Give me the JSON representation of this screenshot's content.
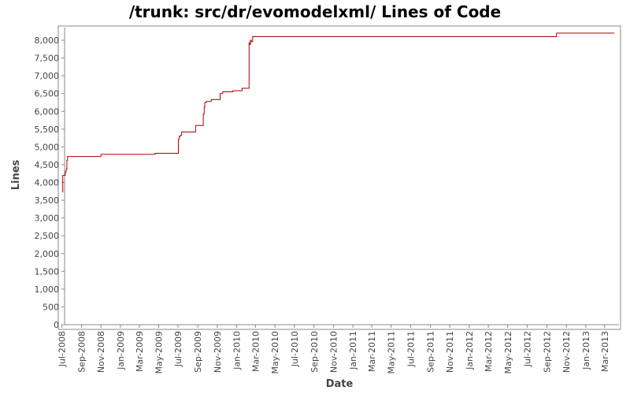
{
  "chart_data": {
    "type": "line",
    "title": "/trunk: src/dr/evomodelxml/ Lines of Code",
    "xlabel": "Date",
    "ylabel": "Lines",
    "ylim": [
      0,
      8400
    ],
    "xlim": [
      "2008-06-20",
      "2013-04-20"
    ],
    "grid": false,
    "legend": "none",
    "line_style": "step",
    "colors": {
      "line": "#b00000",
      "axis": "#888888",
      "plot_border": "#888888",
      "text": "#444444"
    },
    "y_ticks": [
      {
        "value": 0,
        "label": "0"
      },
      {
        "value": 500,
        "label": "500"
      },
      {
        "value": 1000,
        "label": "1,000"
      },
      {
        "value": 1500,
        "label": "1,500"
      },
      {
        "value": 2000,
        "label": "2,000"
      },
      {
        "value": 2500,
        "label": "2,500"
      },
      {
        "value": 3000,
        "label": "3,000"
      },
      {
        "value": 3500,
        "label": "3,500"
      },
      {
        "value": 4000,
        "label": "4,000"
      },
      {
        "value": 4500,
        "label": "4,500"
      },
      {
        "value": 5000,
        "label": "5,000"
      },
      {
        "value": 5500,
        "label": "5,500"
      },
      {
        "value": 6000,
        "label": "6,000"
      },
      {
        "value": 6500,
        "label": "6,500"
      },
      {
        "value": 7000,
        "label": "7,000"
      },
      {
        "value": 7500,
        "label": "7,500"
      },
      {
        "value": 8000,
        "label": "8,000"
      }
    ],
    "x_ticks": [
      {
        "value": "2008-07-01",
        "label": "Jul-2008"
      },
      {
        "value": "2008-09-01",
        "label": "Sep-2008"
      },
      {
        "value": "2008-11-01",
        "label": "Nov-2008"
      },
      {
        "value": "2009-01-01",
        "label": "Jan-2009"
      },
      {
        "value": "2009-03-01",
        "label": "Mar-2009"
      },
      {
        "value": "2009-05-01",
        "label": "May-2009"
      },
      {
        "value": "2009-07-01",
        "label": "Jul-2009"
      },
      {
        "value": "2009-09-01",
        "label": "Sep-2009"
      },
      {
        "value": "2009-11-01",
        "label": "Nov-2009"
      },
      {
        "value": "2010-01-01",
        "label": "Jan-2010"
      },
      {
        "value": "2010-03-01",
        "label": "Mar-2010"
      },
      {
        "value": "2010-05-01",
        "label": "May-2010"
      },
      {
        "value": "2010-07-01",
        "label": "Jul-2010"
      },
      {
        "value": "2010-09-01",
        "label": "Sep-2010"
      },
      {
        "value": "2010-11-01",
        "label": "Nov-2010"
      },
      {
        "value": "2011-01-01",
        "label": "Jan-2011"
      },
      {
        "value": "2011-03-01",
        "label": "Mar-2011"
      },
      {
        "value": "2011-05-01",
        "label": "May-2011"
      },
      {
        "value": "2011-07-01",
        "label": "Jul-2011"
      },
      {
        "value": "2011-09-01",
        "label": "Sep-2011"
      },
      {
        "value": "2011-11-01",
        "label": "Nov-2011"
      },
      {
        "value": "2012-01-01",
        "label": "Jan-2012"
      },
      {
        "value": "2012-03-01",
        "label": "Mar-2012"
      },
      {
        "value": "2012-05-01",
        "label": "May-2012"
      },
      {
        "value": "2012-07-01",
        "label": "Jul-2012"
      },
      {
        "value": "2012-09-01",
        "label": "Sep-2012"
      },
      {
        "value": "2012-11-01",
        "label": "Nov-2012"
      },
      {
        "value": "2013-01-01",
        "label": "Jan-2013"
      },
      {
        "value": "2013-03-01",
        "label": "Mar-2013"
      }
    ],
    "series": [
      {
        "x": [
          "2008-07-03",
          "2008-07-04",
          "2008-07-08",
          "2008-07-12",
          "2008-07-15",
          "2008-07-17",
          "2008-07-19",
          "2008-11-01",
          "2009-04-20",
          "2009-07-02",
          "2009-07-04",
          "2009-07-07",
          "2009-07-12",
          "2009-08-25",
          "2009-09-18",
          "2009-09-21",
          "2009-09-23",
          "2009-09-28",
          "2009-10-13",
          "2009-11-10",
          "2009-11-18",
          "2009-12-20",
          "2010-01-18",
          "2010-02-09",
          "2010-02-11",
          "2010-02-13",
          "2010-02-16",
          "2010-02-20",
          "2012-10-01",
          "2013-04-01"
        ],
        "y": [
          3730,
          4200,
          4200,
          4300,
          4380,
          4620,
          4730,
          4790,
          4820,
          5200,
          5280,
          5320,
          5420,
          5600,
          5920,
          6120,
          6250,
          6280,
          6330,
          6500,
          6550,
          6580,
          6650,
          7930,
          7880,
          8000,
          7960,
          8100,
          8200,
          8200
        ]
      }
    ]
  }
}
